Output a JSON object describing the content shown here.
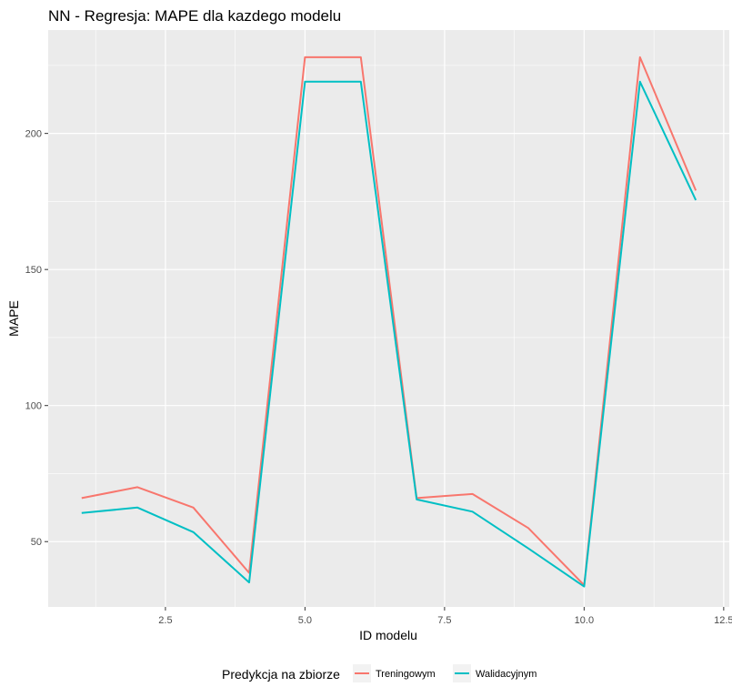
{
  "chart_data": {
    "type": "line",
    "title": "NN - Regresja: MAPE dla kazdego modelu",
    "xlabel": "ID modelu",
    "ylabel": "MAPE",
    "xlim": [
      0.4,
      12.6
    ],
    "ylim": [
      26,
      238
    ],
    "x_ticks": [
      2.5,
      5.0,
      7.5,
      10.0,
      12.5
    ],
    "x_tick_labels": [
      "2.5",
      "5.0",
      "7.5",
      "10.0",
      "12.5"
    ],
    "y_ticks": [
      50,
      100,
      150,
      200
    ],
    "y_tick_labels": [
      "50",
      "100",
      "150",
      "200"
    ],
    "grid": true,
    "legend": {
      "title": "Predykcja na zbiorze",
      "position": "bottom"
    },
    "x": [
      1,
      2,
      3,
      4,
      5,
      6,
      7,
      8,
      9,
      10,
      11,
      12
    ],
    "series": [
      {
        "name": "Treningowym",
        "color": "#F8766D",
        "values": [
          66,
          70,
          62.5,
          38.5,
          228,
          228,
          66,
          67.5,
          55,
          34,
          228,
          179
        ]
      },
      {
        "name": "Walidacyjnym",
        "color": "#00BFC4",
        "values": [
          60.5,
          62.5,
          53.5,
          35,
          219,
          219,
          65.5,
          61,
          47.5,
          33.5,
          219,
          175.5
        ]
      }
    ]
  }
}
